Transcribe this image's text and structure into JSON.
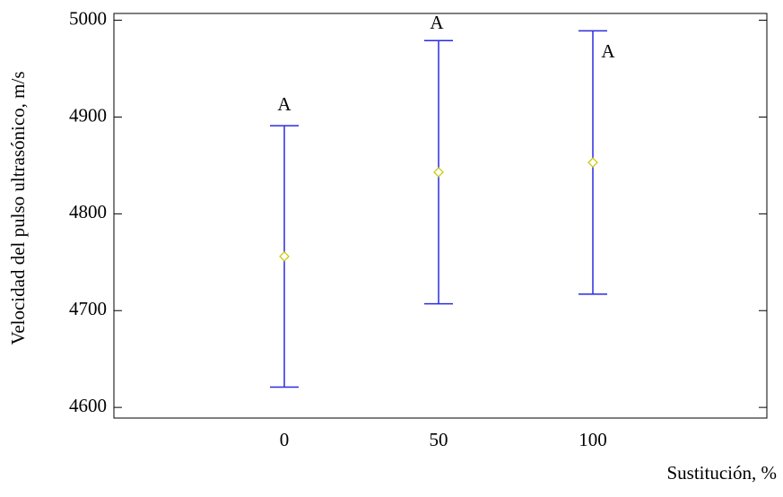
{
  "chart_data": {
    "type": "errorbar",
    "x_label": "Sustitución, %",
    "y_label": "Velocidad del pulso ultrasónico, m/s",
    "categories": [
      "0",
      "50",
      "100"
    ],
    "values": [
      4756,
      4843,
      4853
    ],
    "error": [
      135,
      136,
      136
    ],
    "group_labels": [
      "A",
      "A",
      "A"
    ],
    "color": "#2b2be0",
    "marker_color": "#c8c800",
    "ylim": [
      4589,
      5007
    ],
    "yticks": [
      4600,
      4700,
      4800,
      4900,
      5000
    ]
  }
}
